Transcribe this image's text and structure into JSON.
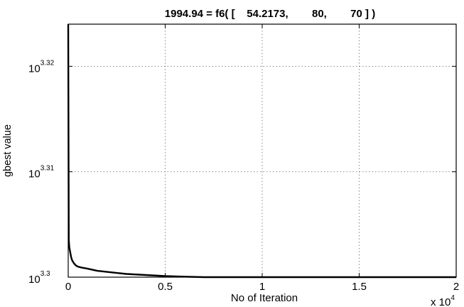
{
  "chart_data": {
    "type": "line",
    "title": "1994.94 = f6( [    54.2173,        80,        70 ] )",
    "xlabel": "No of Iteration",
    "ylabel": "gbest value",
    "x_ticks": [
      "0",
      "0.5",
      "1",
      "1.5",
      "2"
    ],
    "x_multiplier": {
      "base": "x 10",
      "exponent": "4"
    },
    "y_ticks": [
      {
        "base": "10",
        "exponent": "3.3"
      },
      {
        "base": "10",
        "exponent": "3.31"
      },
      {
        "base": "10",
        "exponent": "3.32"
      }
    ],
    "xlim": [
      0,
      20000
    ],
    "ylim_log10": [
      3.3,
      3.324
    ],
    "yscale": "log",
    "grid": true,
    "line_color": "#000000",
    "series": [
      {
        "x": [
          0,
          30,
          60,
          100,
          150,
          200,
          300,
          400,
          500,
          700,
          1000,
          1500,
          2000,
          2500,
          3000,
          4000,
          5000,
          6000,
          7000,
          8000,
          10000,
          12000,
          15000,
          20000
        ],
        "y_log10": [
          3.3242,
          3.3035,
          3.3028,
          3.3024,
          3.3019,
          3.3016,
          3.3013,
          3.3011,
          3.301,
          3.3009,
          3.3008,
          3.3006,
          3.3005,
          3.3004,
          3.3003,
          3.3002,
          3.3001,
          3.30005,
          3.3,
          3.3,
          3.3,
          3.3,
          3.3,
          3.3
        ]
      }
    ]
  }
}
